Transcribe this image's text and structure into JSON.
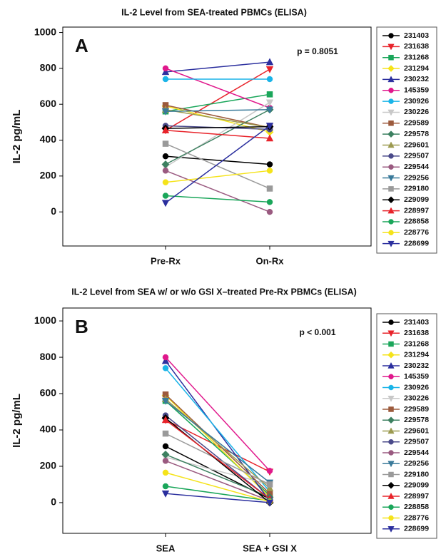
{
  "chart_data": [
    {
      "type": "line",
      "title": "IL-2 Level from SEA-treated PBMCs (ELISA)",
      "panel_label": "A",
      "annotation": "p = 0.8051",
      "y_label": "IL-2 pg/mL",
      "categories": [
        "Pre-Rx",
        "On-Rx"
      ],
      "ylim": [
        -190,
        1030
      ],
      "yticks": [
        0,
        200,
        400,
        600,
        800,
        1000
      ],
      "series": [
        {
          "name": "231403",
          "color": "#000000",
          "marker": "circle",
          "values": [
            310,
            265
          ]
        },
        {
          "name": "231638",
          "color": "#e8232a",
          "marker": "triangle-down",
          "values": [
            455,
            795
          ]
        },
        {
          "name": "231268",
          "color": "#1aa65a",
          "marker": "square",
          "values": [
            560,
            655
          ]
        },
        {
          "name": "231294",
          "color": "#f5e31a",
          "marker": "diamond",
          "values": [
            590,
            445
          ]
        },
        {
          "name": "230232",
          "color": "#2b2f9e",
          "marker": "triangle-up",
          "values": [
            780,
            835
          ]
        },
        {
          "name": "145359",
          "color": "#e0188c",
          "marker": "circle",
          "values": [
            800,
            580
          ]
        },
        {
          "name": "230926",
          "color": "#1ab4e8",
          "marker": "circle",
          "values": [
            740,
            740
          ]
        },
        {
          "name": "230226",
          "color": "#c8c8c8",
          "marker": "triangle-down",
          "values": [
            250,
            610
          ]
        },
        {
          "name": "229589",
          "color": "#9c5a3c",
          "marker": "square",
          "values": [
            595,
            470
          ]
        },
        {
          "name": "229578",
          "color": "#3c8060",
          "marker": "diamond",
          "values": [
            265,
            570
          ]
        },
        {
          "name": "229601",
          "color": "#9c9a50",
          "marker": "triangle-up",
          "values": [
            570,
            470
          ]
        },
        {
          "name": "229507",
          "color": "#4a4a8a",
          "marker": "circle",
          "values": [
            480,
            460
          ]
        },
        {
          "name": "229544",
          "color": "#9a5a80",
          "marker": "circle",
          "values": [
            230,
            0
          ]
        },
        {
          "name": "229256",
          "color": "#3a7a9a",
          "marker": "triangle-down",
          "values": [
            560,
            570
          ]
        },
        {
          "name": "229180",
          "color": "#9a9a9a",
          "marker": "square",
          "values": [
            380,
            130
          ]
        },
        {
          "name": "229099",
          "color": "#000000",
          "marker": "diamond",
          "values": [
            465,
            475
          ]
        },
        {
          "name": "228997",
          "color": "#e8232a",
          "marker": "triangle-up",
          "values": [
            455,
            410
          ]
        },
        {
          "name": "228858",
          "color": "#1aa65a",
          "marker": "circle",
          "values": [
            90,
            55
          ]
        },
        {
          "name": "228776",
          "color": "#f5e31a",
          "marker": "circle",
          "values": [
            165,
            230
          ]
        },
        {
          "name": "228699",
          "color": "#2b2f9e",
          "marker": "triangle-down",
          "values": [
            50,
            480
          ]
        }
      ]
    },
    {
      "type": "line",
      "title": "IL-2 Level from SEA w/ or w/o GSI X–treated Pre-Rx PBMCs (ELISA)",
      "panel_label": "B",
      "annotation": "p < 0.001",
      "y_label": "IL-2 pg/mL",
      "categories": [
        "SEA",
        "SEA + GSI X"
      ],
      "ylim": [
        -169,
        1071
      ],
      "yticks": [
        0,
        200,
        400,
        600,
        800,
        1000
      ],
      "series": [
        {
          "name": "231403",
          "color": "#000000",
          "marker": "circle",
          "values": [
            310,
            20
          ]
        },
        {
          "name": "231638",
          "color": "#e8232a",
          "marker": "triangle-down",
          "values": [
            455,
            170
          ]
        },
        {
          "name": "231268",
          "color": "#1aa65a",
          "marker": "square",
          "values": [
            560,
            40
          ]
        },
        {
          "name": "231294",
          "color": "#f5e31a",
          "marker": "diamond",
          "values": [
            590,
            30
          ]
        },
        {
          "name": "230232",
          "color": "#2b2f9e",
          "marker": "triangle-up",
          "values": [
            780,
            10
          ]
        },
        {
          "name": "145359",
          "color": "#e0188c",
          "marker": "circle",
          "values": [
            800,
            175
          ]
        },
        {
          "name": "230926",
          "color": "#1ab4e8",
          "marker": "circle",
          "values": [
            740,
            60
          ]
        },
        {
          "name": "230226",
          "color": "#c8c8c8",
          "marker": "triangle-down",
          "values": [
            250,
            100
          ]
        },
        {
          "name": "229589",
          "color": "#9c5a3c",
          "marker": "square",
          "values": [
            595,
            50
          ]
        },
        {
          "name": "229578",
          "color": "#3c8060",
          "marker": "diamond",
          "values": [
            265,
            30
          ]
        },
        {
          "name": "229601",
          "color": "#9c9a50",
          "marker": "triangle-up",
          "values": [
            570,
            80
          ]
        },
        {
          "name": "229507",
          "color": "#4a4a8a",
          "marker": "circle",
          "values": [
            480,
            20
          ]
        },
        {
          "name": "229544",
          "color": "#9a5a80",
          "marker": "circle",
          "values": [
            230,
            10
          ]
        },
        {
          "name": "229256",
          "color": "#3a7a9a",
          "marker": "triangle-down",
          "values": [
            560,
            110
          ]
        },
        {
          "name": "229180",
          "color": "#9a9a9a",
          "marker": "square",
          "values": [
            380,
            100
          ]
        },
        {
          "name": "229099",
          "color": "#000000",
          "marker": "diamond",
          "values": [
            465,
            0
          ]
        },
        {
          "name": "228997",
          "color": "#e8232a",
          "marker": "triangle-up",
          "values": [
            455,
            20
          ]
        },
        {
          "name": "228858",
          "color": "#1aa65a",
          "marker": "circle",
          "values": [
            90,
            10
          ]
        },
        {
          "name": "228776",
          "color": "#f5e31a",
          "marker": "circle",
          "values": [
            165,
            5
          ]
        },
        {
          "name": "228699",
          "color": "#2b2f9e",
          "marker": "triangle-down",
          "values": [
            50,
            0
          ]
        }
      ]
    }
  ]
}
